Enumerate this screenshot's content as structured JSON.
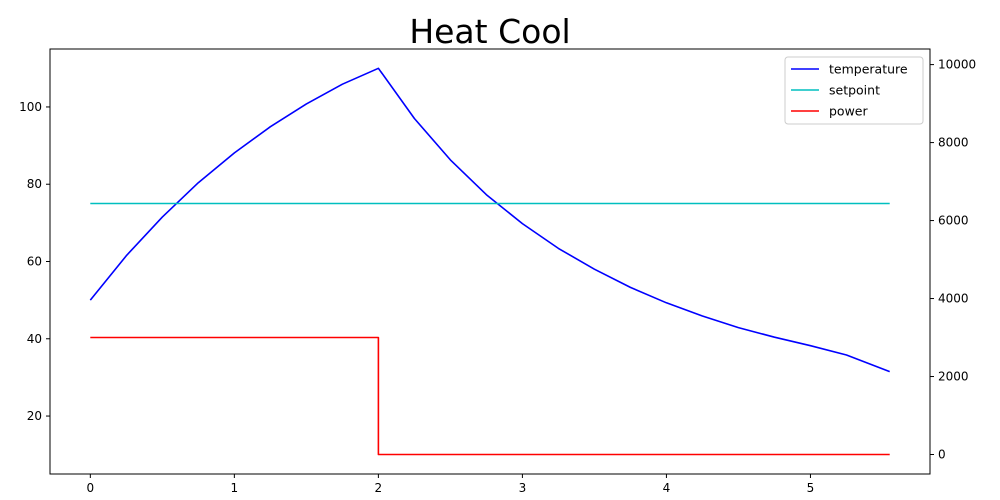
{
  "chart_data": {
    "type": "line",
    "title": "Heat Cool",
    "xlabel": "",
    "ylabel": "",
    "y2label": "",
    "xlim": [
      -0.28,
      5.83
    ],
    "ylim": [
      5,
      115
    ],
    "y2lim": [
      -500,
      10400
    ],
    "xticks": [
      "0",
      "1",
      "2",
      "3",
      "4",
      "5"
    ],
    "yticks": [
      "20",
      "40",
      "60",
      "80",
      "100"
    ],
    "y2ticks": [
      "0",
      "2000",
      "4000",
      "6000",
      "8000",
      "10000"
    ],
    "legend_position": "top-right",
    "grid": false,
    "series": [
      {
        "name": "temperature",
        "axis": "left",
        "color": "#0000ff",
        "x": [
          0,
          0.25,
          0.5,
          0.75,
          1.0,
          1.25,
          1.5,
          1.75,
          2.0,
          2.25,
          2.5,
          2.75,
          3.0,
          3.25,
          3.5,
          3.75,
          4.0,
          4.25,
          4.5,
          4.75,
          5.0,
          5.25,
          5.55
        ],
        "y": [
          50,
          61.5,
          71.5,
          80.4,
          88.1,
          94.9,
          100.8,
          105.9,
          110,
          97.0,
          86.3,
          77.3,
          69.8,
          63.4,
          58.0,
          53.3,
          49.3,
          45.9,
          42.9,
          40.4,
          38.2,
          35.8,
          31.5
        ]
      },
      {
        "name": "setpoint",
        "axis": "left",
        "color": "#00bfbf",
        "x": [
          0,
          5.55
        ],
        "y": [
          75,
          75
        ]
      },
      {
        "name": "power",
        "axis": "right",
        "color": "#ff0000",
        "x": [
          0,
          2.0,
          2.0,
          5.55
        ],
        "y": [
          3000,
          3000,
          0,
          0
        ]
      }
    ]
  }
}
